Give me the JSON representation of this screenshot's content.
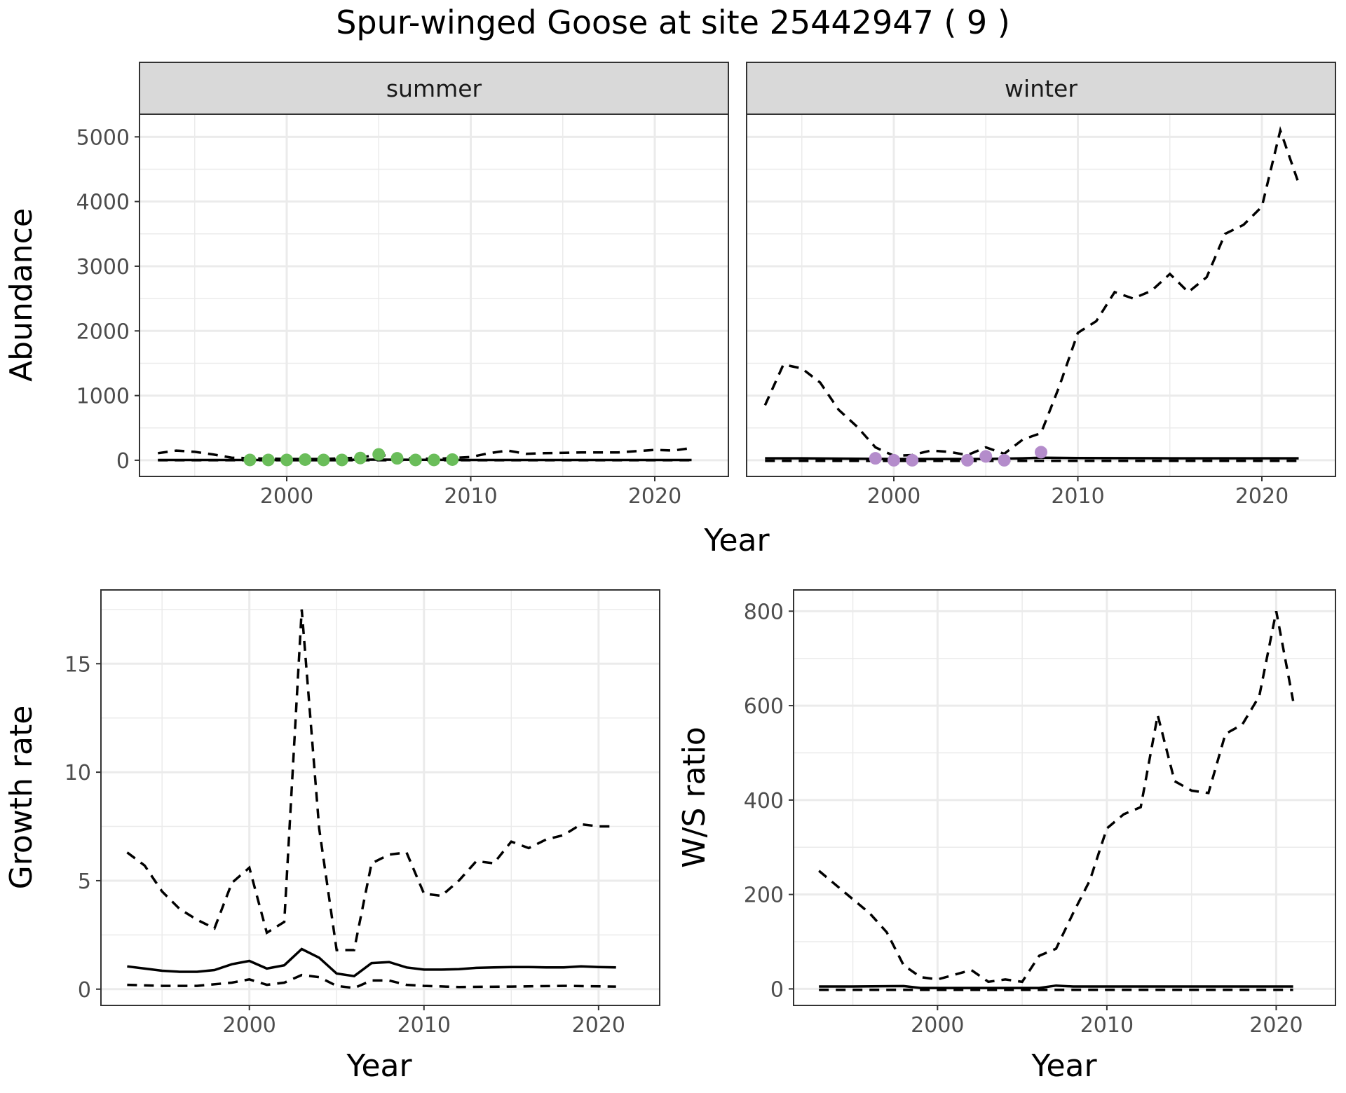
{
  "title": "Spur-winged Goose at site 25442947 ( 9 )",
  "colors": {
    "summer_points": "#6abd5a",
    "winter_points": "#b48ccb",
    "line": "#000000"
  },
  "chart_data": [
    {
      "type": "line",
      "panel": "summer",
      "strip": "summer",
      "xlabel": "Year",
      "ylabel": "Abundance",
      "xlim": [
        1992,
        2024
      ],
      "ylim": [
        -250,
        5350
      ],
      "xticks": [
        2000,
        2010,
        2020
      ],
      "yticks": [
        0,
        1000,
        2000,
        3000,
        4000,
        5000
      ],
      "series": [
        {
          "name": "mean",
          "style": "solid",
          "x": [
            1993,
            1995,
            1997,
            2000,
            2005,
            2010,
            2015,
            2020,
            2022
          ],
          "y": [
            5,
            5,
            5,
            5,
            10,
            5,
            5,
            5,
            5
          ]
        },
        {
          "name": "upper",
          "style": "dashed",
          "x": [
            1993,
            1994,
            1995,
            1996,
            1997,
            1998,
            2000,
            2002,
            2004,
            2005,
            2006,
            2008,
            2010,
            2011,
            2012,
            2013,
            2014,
            2016,
            2018,
            2020,
            2021,
            2022
          ],
          "y": [
            110,
            150,
            130,
            90,
            40,
            30,
            20,
            20,
            40,
            90,
            40,
            20,
            50,
            110,
            150,
            100,
            110,
            120,
            120,
            160,
            150,
            190
          ]
        },
        {
          "name": "lower",
          "style": "dashed",
          "x": [
            1993,
            2000,
            2010,
            2022
          ],
          "y": [
            0,
            0,
            0,
            0
          ]
        },
        {
          "name": "observed",
          "style": "points",
          "x": [
            1998,
            1999,
            2000,
            2001,
            2002,
            2003,
            2004,
            2005,
            2006,
            2007,
            2008,
            2009
          ],
          "y": [
            5,
            5,
            5,
            10,
            5,
            5,
            35,
            90,
            30,
            5,
            5,
            10
          ]
        }
      ]
    },
    {
      "type": "line",
      "panel": "winter",
      "strip": "winter",
      "xlabel": "Year",
      "ylabel": "Abundance",
      "xlim": [
        1992,
        2024
      ],
      "ylim": [
        -250,
        5350
      ],
      "xticks": [
        2000,
        2010,
        2020
      ],
      "yticks": [
        0,
        1000,
        2000,
        3000,
        4000,
        5000
      ],
      "series": [
        {
          "name": "mean",
          "style": "solid",
          "x": [
            1993,
            1995,
            2000,
            2005,
            2007,
            2008,
            2010,
            2015,
            2020,
            2022
          ],
          "y": [
            30,
            30,
            20,
            20,
            30,
            40,
            35,
            30,
            30,
            30
          ]
        },
        {
          "name": "upper",
          "style": "dashed",
          "x": [
            1993,
            1994,
            1995,
            1996,
            1997,
            1998,
            1999,
            2000,
            2001,
            2002,
            2003,
            2004,
            2005,
            2006,
            2007,
            2008,
            2009,
            2010,
            2011,
            2012,
            2013,
            2014,
            2015,
            2016,
            2017,
            2018,
            2019,
            2020,
            2021,
            2022
          ],
          "y": [
            850,
            1480,
            1420,
            1200,
            780,
            520,
            200,
            70,
            80,
            150,
            130,
            80,
            200,
            100,
            320,
            420,
            1150,
            1970,
            2150,
            2600,
            2500,
            2620,
            2880,
            2600,
            2830,
            3500,
            3640,
            3920,
            5100,
            4280
          ]
        },
        {
          "name": "lower",
          "style": "dashed",
          "x": [
            1993,
            2000,
            2010,
            2022
          ],
          "y": [
            -10,
            -10,
            -10,
            -10
          ]
        },
        {
          "name": "observed",
          "style": "points",
          "x": [
            1999,
            2000,
            2001,
            2004,
            2005,
            2006,
            2008
          ],
          "y": [
            30,
            0,
            0,
            0,
            60,
            0,
            125
          ]
        }
      ]
    },
    {
      "type": "line",
      "panel": "growth",
      "xlabel": "Year",
      "ylabel": "Growth rate",
      "xlim": [
        1991.5,
        2023.5
      ],
      "ylim": [
        -0.75,
        18.4
      ],
      "xticks": [
        2000,
        2010,
        2020
      ],
      "yticks": [
        0,
        5,
        10,
        15
      ],
      "series": [
        {
          "name": "mean",
          "style": "solid",
          "x": [
            1993,
            1994,
            1995,
            1996,
            1997,
            1998,
            1999,
            2000,
            2001,
            2002,
            2003,
            2004,
            2005,
            2006,
            2007,
            2008,
            2009,
            2010,
            2011,
            2012,
            2013,
            2014,
            2015,
            2016,
            2017,
            2018,
            2019,
            2020,
            2021
          ],
          "y": [
            1.05,
            0.95,
            0.85,
            0.8,
            0.8,
            0.88,
            1.15,
            1.3,
            0.95,
            1.1,
            1.85,
            1.45,
            0.72,
            0.6,
            1.2,
            1.25,
            1.0,
            0.9,
            0.9,
            0.92,
            0.98,
            1.0,
            1.02,
            1.02,
            1.0,
            1.0,
            1.05,
            1.02,
            1.0
          ]
        },
        {
          "name": "upper",
          "style": "dashed",
          "x": [
            1993,
            1994,
            1995,
            1996,
            1997,
            1998,
            1999,
            2000,
            2001,
            2002,
            2003,
            2004,
            2005,
            2006,
            2007,
            2008,
            2009,
            2010,
            2011,
            2012,
            2013,
            2014,
            2015,
            2016,
            2017,
            2018,
            2019,
            2020,
            2021
          ],
          "y": [
            6.3,
            5.7,
            4.5,
            3.7,
            3.2,
            2.8,
            4.9,
            5.6,
            2.6,
            3.1,
            17.5,
            7.4,
            1.8,
            1.8,
            5.8,
            6.2,
            6.3,
            4.4,
            4.3,
            5.0,
            5.9,
            5.8,
            6.8,
            6.5,
            6.9,
            7.1,
            7.6,
            7.5,
            7.5
          ]
        },
        {
          "name": "lower",
          "style": "dashed",
          "x": [
            1993,
            1995,
            1997,
            1999,
            2000,
            2001,
            2002,
            2003,
            2004,
            2005,
            2006,
            2007,
            2008,
            2009,
            2010,
            2012,
            2015,
            2018,
            2021
          ],
          "y": [
            0.2,
            0.15,
            0.15,
            0.3,
            0.45,
            0.2,
            0.3,
            0.65,
            0.55,
            0.15,
            0.05,
            0.4,
            0.4,
            0.2,
            0.15,
            0.1,
            0.12,
            0.15,
            0.12
          ]
        }
      ]
    },
    {
      "type": "line",
      "panel": "ratio",
      "xlabel": "Year",
      "ylabel": "W/S ratio",
      "xlim": [
        1991.5,
        2023.5
      ],
      "ylim": [
        -35,
        845
      ],
      "xticks": [
        2000,
        2010,
        2020
      ],
      "yticks": [
        0,
        200,
        400,
        600,
        800
      ],
      "series": [
        {
          "name": "mean",
          "style": "solid",
          "x": [
            1993,
            1995,
            1998,
            1999,
            2000,
            2003,
            2005,
            2006,
            2007,
            2008,
            2010,
            2015,
            2021
          ],
          "y": [
            5,
            5,
            6,
            2,
            2,
            2,
            2,
            2,
            7,
            5,
            5,
            5,
            5
          ]
        },
        {
          "name": "upper",
          "style": "dashed",
          "x": [
            1993,
            1994,
            1995,
            1996,
            1997,
            1998,
            1999,
            2000,
            2001,
            2002,
            2003,
            2004,
            2005,
            2006,
            2007,
            2008,
            2009,
            2010,
            2011,
            2012,
            2013,
            2014,
            2015,
            2016,
            2017,
            2018,
            2019,
            2020,
            2021
          ],
          "y": [
            250,
            220,
            190,
            160,
            120,
            50,
            25,
            20,
            30,
            40,
            15,
            20,
            15,
            70,
            85,
            160,
            230,
            340,
            370,
            385,
            580,
            440,
            420,
            415,
            540,
            560,
            620,
            800,
            610
          ]
        },
        {
          "name": "lower",
          "style": "dashed",
          "x": [
            1993,
            2000,
            2010,
            2021
          ],
          "y": [
            -2,
            -2,
            -2,
            -2
          ]
        }
      ]
    }
  ]
}
